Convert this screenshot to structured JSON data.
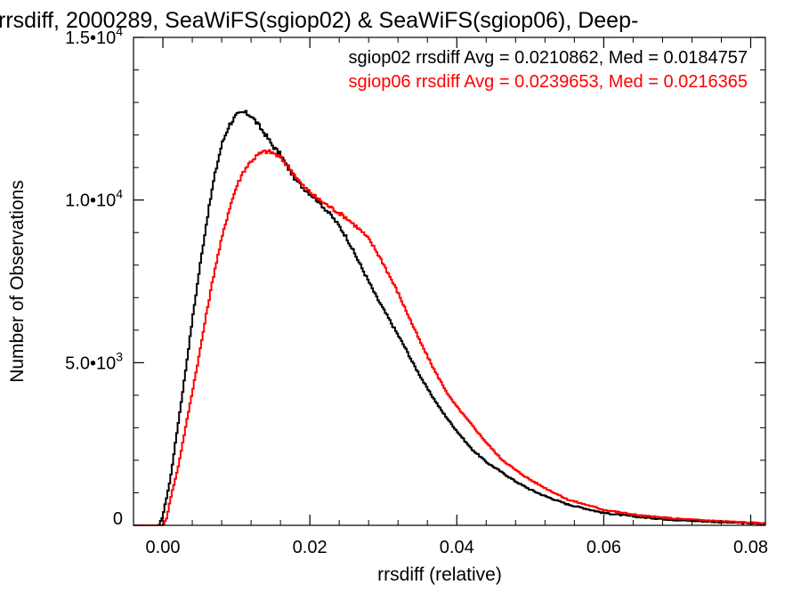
{
  "chart_data": {
    "type": "line",
    "title": "rrsdiff, 2000289, SeaWiFS(sgiop02) & SeaWiFS(sgiop06), Deep-",
    "xlabel": "rrsdiff (relative)",
    "ylabel": "Number of Observations",
    "xlim": [
      -0.004,
      0.082
    ],
    "ylim": [
      0,
      15000
    ],
    "x_ticks": [
      0.0,
      0.02,
      0.04,
      0.06,
      0.08
    ],
    "x_tick_labels": [
      "0.00",
      "0.02",
      "0.04",
      "0.06",
      "0.08"
    ],
    "y_ticks": [
      0,
      5000,
      10000,
      15000
    ],
    "y_tick_labels": [
      {
        "mantissa": "0",
        "exp": ""
      },
      {
        "mantissa": "5.0•10",
        "exp": "3"
      },
      {
        "mantissa": "1.0•10",
        "exp": "4"
      },
      {
        "mantissa": "1.5•10",
        "exp": "4"
      }
    ],
    "grid": false,
    "legend_position": "top-right",
    "series": [
      {
        "color": "#000000",
        "label": "sgiop02 rrsdiff Avg = 0.0210862, Med = 0.0184757",
        "x": [
          -0.004,
          -0.0005,
          0.0,
          0.001,
          0.002,
          0.003,
          0.004,
          0.005,
          0.006,
          0.007,
          0.008,
          0.009,
          0.01,
          0.011,
          0.012,
          0.013,
          0.014,
          0.015,
          0.016,
          0.017,
          0.018,
          0.019,
          0.02,
          0.021,
          0.022,
          0.023,
          0.024,
          0.025,
          0.026,
          0.027,
          0.028,
          0.029,
          0.03,
          0.031,
          0.032,
          0.033,
          0.034,
          0.035,
          0.036,
          0.037,
          0.038,
          0.039,
          0.04,
          0.042,
          0.044,
          0.046,
          0.048,
          0.05,
          0.052,
          0.055,
          0.06,
          0.065,
          0.07,
          0.075,
          0.08,
          0.082
        ],
        "y": [
          0,
          0,
          300,
          1400,
          3000,
          4600,
          6300,
          7900,
          9400,
          10700,
          11700,
          12300,
          12600,
          12700,
          12600,
          12300,
          12000,
          11650,
          11400,
          11000,
          10650,
          10400,
          10200,
          10000,
          9750,
          9500,
          9200,
          8850,
          8400,
          7950,
          7500,
          7050,
          6650,
          6250,
          5850,
          5450,
          5000,
          4600,
          4200,
          3850,
          3500,
          3200,
          2900,
          2350,
          1950,
          1650,
          1350,
          1100,
          900,
          650,
          380,
          250,
          160,
          110,
          60,
          50
        ]
      },
      {
        "color": "#ff0000",
        "label": "sgiop06 rrsdiff Avg = 0.0239653, Med = 0.0216365",
        "x": [
          -0.004,
          0.0,
          0.0005,
          0.001,
          0.002,
          0.003,
          0.004,
          0.005,
          0.006,
          0.007,
          0.008,
          0.009,
          0.01,
          0.011,
          0.012,
          0.013,
          0.014,
          0.015,
          0.016,
          0.017,
          0.018,
          0.019,
          0.02,
          0.021,
          0.022,
          0.023,
          0.024,
          0.025,
          0.026,
          0.027,
          0.028,
          0.029,
          0.03,
          0.031,
          0.032,
          0.033,
          0.034,
          0.035,
          0.036,
          0.037,
          0.038,
          0.039,
          0.04,
          0.042,
          0.044,
          0.046,
          0.048,
          0.05,
          0.052,
          0.055,
          0.06,
          0.065,
          0.07,
          0.075,
          0.08,
          0.082
        ],
        "y": [
          0,
          0,
          200,
          800,
          1700,
          2900,
          4100,
          5300,
          6600,
          7800,
          8800,
          9700,
          10400,
          10900,
          11200,
          11400,
          11500,
          11450,
          11300,
          11050,
          10750,
          10450,
          10250,
          10050,
          9900,
          9750,
          9600,
          9450,
          9250,
          9050,
          8800,
          8450,
          8050,
          7600,
          7150,
          6650,
          6150,
          5650,
          5200,
          4750,
          4350,
          3950,
          3650,
          3100,
          2550,
          2050,
          1700,
          1400,
          1150,
          800,
          480,
          300,
          200,
          140,
          80,
          60
        ]
      }
    ]
  }
}
